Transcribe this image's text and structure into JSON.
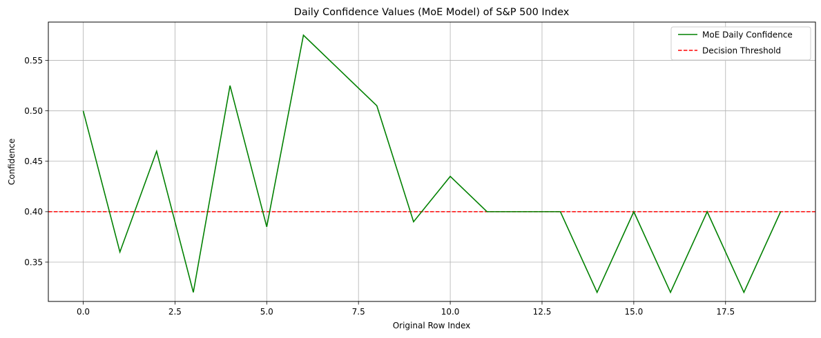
{
  "chart_data": {
    "type": "line",
    "title": "Daily Confidence Values (MoE Model) of S&P 500 Index",
    "xlabel": "Original Row Index",
    "ylabel": "Confidence",
    "xlim": [
      -0.95,
      19.95
    ],
    "ylim": [
      0.311,
      0.588
    ],
    "grid": true,
    "legend_position": "top-right",
    "x_ticks": [
      0.0,
      2.5,
      5.0,
      7.5,
      10.0,
      12.5,
      15.0,
      17.5
    ],
    "x_tick_labels": [
      "0.0",
      "2.5",
      "5.0",
      "7.5",
      "10.0",
      "12.5",
      "15.0",
      "17.5"
    ],
    "y_ticks": [
      0.35,
      0.4,
      0.45,
      0.5,
      0.55
    ],
    "y_tick_labels": [
      "0.35",
      "0.40",
      "0.45",
      "0.50",
      "0.55"
    ],
    "series": [
      {
        "name": "MoE Daily Confidence",
        "color": "#008000",
        "style": "solid",
        "x": [
          0,
          1,
          2,
          3,
          4,
          5,
          6,
          7,
          8,
          9,
          10,
          11,
          12,
          13,
          14,
          15,
          16,
          17,
          18,
          19
        ],
        "y": [
          0.5,
          0.36,
          0.46,
          0.32,
          0.525,
          0.385,
          0.575,
          0.54,
          0.505,
          0.39,
          0.435,
          0.4,
          0.4,
          0.4,
          0.32,
          0.4,
          0.32,
          0.4,
          0.32,
          0.4
        ]
      }
    ],
    "hlines": [
      {
        "name": "Decision Threshold",
        "y": 0.4,
        "color": "#ff0000",
        "style": "dashed"
      }
    ]
  }
}
